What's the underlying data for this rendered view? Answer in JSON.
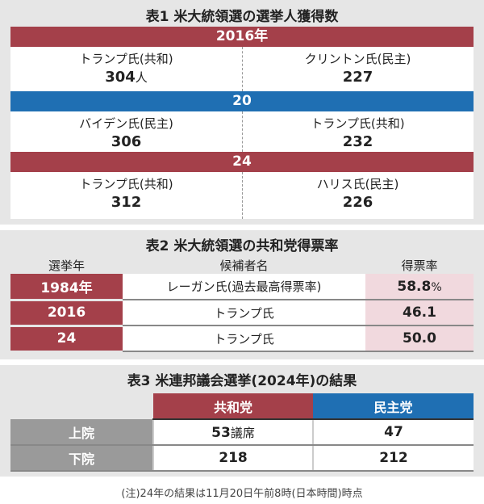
{
  "table1": {
    "title": "表1 米大統領選の選挙人獲得数",
    "unit": "人",
    "blocks": [
      {
        "year": "2016年",
        "color": "#a4404a",
        "left": {
          "name": "トランプ氏(共和)",
          "value": "304"
        },
        "right": {
          "name": "クリントン氏(民主)",
          "value": "227"
        }
      },
      {
        "year": "20",
        "color": "#1f6fb3",
        "left": {
          "name": "バイデン氏(民主)",
          "value": "306"
        },
        "right": {
          "name": "トランプ氏(共和)",
          "value": "232"
        }
      },
      {
        "year": "24",
        "color": "#a4404a",
        "left": {
          "name": "トランプ氏(共和)",
          "value": "312"
        },
        "right": {
          "name": "ハリス氏(民主)",
          "value": "226"
        }
      }
    ]
  },
  "table2": {
    "title": "表2 米大統領選の共和党得票率",
    "headers": [
      "選挙年",
      "候補者名",
      "得票率"
    ],
    "rows": [
      {
        "year": "1984年",
        "name": "レーガン氏(過去最高得票率)",
        "rate": "58.8",
        "unit": "%"
      },
      {
        "year": "2016",
        "name": "トランプ氏",
        "rate": "46.1"
      },
      {
        "year": "24",
        "name": "トランプ氏",
        "rate": "50.0"
      }
    ]
  },
  "table3": {
    "title": "表3 米連邦議会選挙(2024年)の結果",
    "headers": [
      "共和党",
      "民主党"
    ],
    "rows": [
      {
        "label": "上院",
        "rep": "53",
        "rep_unit": "議席",
        "dem": "47"
      },
      {
        "label": "下院",
        "rep": "218",
        "dem": "212"
      }
    ]
  },
  "note": "(注)24年の結果は11月20日午前8時(日本時間)時点"
}
